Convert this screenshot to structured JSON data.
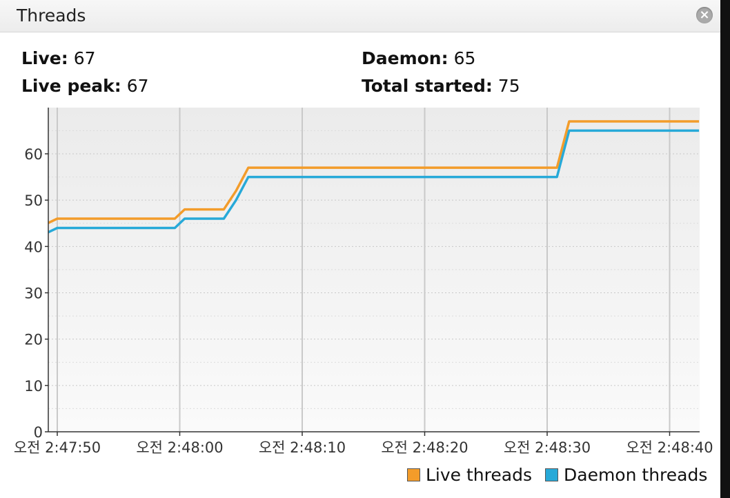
{
  "panel": {
    "title": "Threads",
    "close_icon": "close-icon",
    "stats": {
      "live_label": "Live:",
      "live_value": "67",
      "peak_label": "Live peak:",
      "peak_value": "67",
      "daemon_label": "Daemon:",
      "daemon_value": "65",
      "started_label": "Total started:",
      "started_value": "75"
    }
  },
  "chart_data": {
    "type": "line",
    "title": "",
    "xlabel": "",
    "ylabel": "",
    "ylim": [
      0,
      67
    ],
    "xlim": [
      -0.8,
      52.4
    ],
    "yticks": [
      0,
      10,
      20,
      30,
      40,
      50,
      60
    ],
    "x_ticks": [
      {
        "t": 0,
        "label": "오전 2:47:50"
      },
      {
        "t": 10,
        "label": "오전 2:48:00"
      },
      {
        "t": 20,
        "label": "오전 2:48:10"
      },
      {
        "t": 30,
        "label": "오전 2:48:20"
      },
      {
        "t": 40,
        "label": "오전 2:48:30"
      },
      {
        "t": 50,
        "label": "오전 2:48:40"
      }
    ],
    "x_offsets_seconds": [
      -0.8,
      0,
      9.6,
      10.4,
      13.6,
      14.6,
      15.6,
      40.8,
      41.8,
      52.4
    ],
    "series": [
      {
        "name": "Live threads",
        "color": "#f39c2a",
        "values": [
          45,
          46,
          46,
          48,
          48,
          52,
          57,
          57,
          67,
          67
        ]
      },
      {
        "name": "Daemon threads",
        "color": "#27a9d8",
        "values": [
          43,
          44,
          44,
          46,
          46,
          50,
          55,
          55,
          65,
          65
        ]
      }
    ],
    "grid": true,
    "legend": "bottom-right"
  }
}
